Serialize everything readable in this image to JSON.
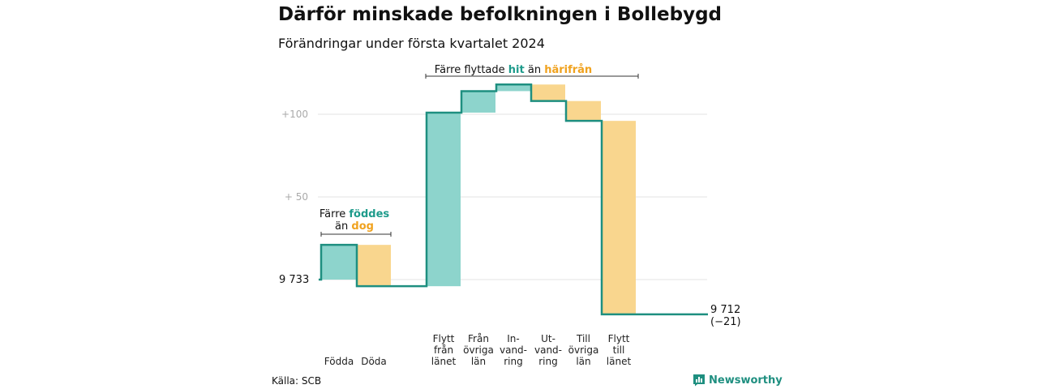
{
  "title": "Därför minskade befolkningen i Bollebygd",
  "subtitle": "Förändringar under första kvartalet 2024",
  "source": "Källa: SCB",
  "brand": {
    "name": "Newsworthy",
    "icon": "bar-chart-logo-icon"
  },
  "colors": {
    "positive": "#8dd4cc",
    "negative": "#f9d68e",
    "line": "#1e8f80",
    "positive_text": "#1e9b8b",
    "negative_text": "#f0a21e",
    "grid": "#e3e3e3"
  },
  "chart_data": {
    "type": "waterfall",
    "start": {
      "label": "9 733",
      "value": 9733
    },
    "end": {
      "label": "9 712",
      "change_label": "(−21)",
      "value": 9712
    },
    "y_ticks": [
      {
        "label": "+100",
        "offset": 100
      },
      {
        "label": "+  50",
        "offset": 50
      }
    ],
    "grid": true,
    "steps": [
      {
        "label": [
          "Födda"
        ],
        "change": 21,
        "type": "positive"
      },
      {
        "label": [
          "Döda"
        ],
        "change": -25,
        "type": "negative"
      },
      {
        "label": [
          "Flytt",
          "från",
          "länet"
        ],
        "change": 105,
        "type": "positive"
      },
      {
        "label": [
          "Från",
          "övriga",
          "län"
        ],
        "change": 13,
        "type": "positive"
      },
      {
        "label": [
          "In-",
          "vand-",
          "ring"
        ],
        "change": 4,
        "type": "positive"
      },
      {
        "label": [
          "Ut-",
          "vand-",
          "ring"
        ],
        "change": -10,
        "type": "negative"
      },
      {
        "label": [
          "Till",
          "övriga",
          "län"
        ],
        "change": -12,
        "type": "negative"
      },
      {
        "label": [
          "Flytt",
          "till",
          "länet"
        ],
        "change": -117,
        "type": "negative"
      }
    ],
    "annotations": [
      {
        "id": "birth",
        "parts": [
          {
            "text": "Färre ",
            "kind": "plain"
          },
          {
            "text": "föddes",
            "kind": "positive"
          },
          {
            "text": "än ",
            "kind": "plain",
            "newline": true
          },
          {
            "text": "dog",
            "kind": "negative"
          }
        ]
      },
      {
        "id": "migration",
        "parts": [
          {
            "text": "Färre flyttade ",
            "kind": "plain"
          },
          {
            "text": "hit",
            "kind": "positive"
          },
          {
            "text": " än ",
            "kind": "plain"
          },
          {
            "text": "härifrån",
            "kind": "negative"
          }
        ]
      }
    ]
  }
}
